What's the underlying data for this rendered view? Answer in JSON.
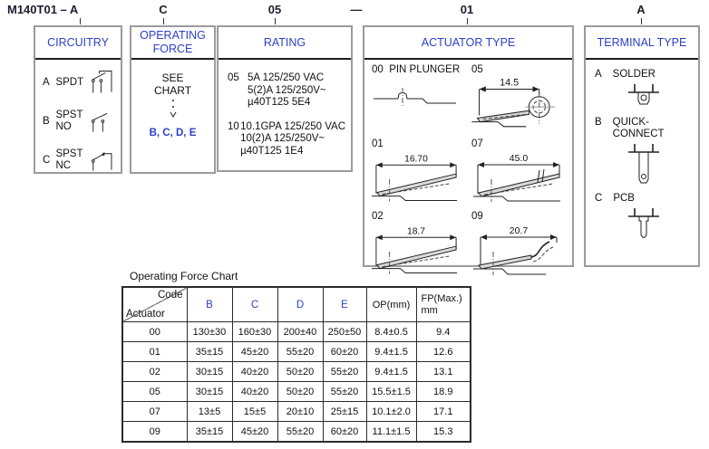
{
  "colors": {
    "accent_blue": "#2d3fc7",
    "box_border": "#9b9b9b",
    "text": "#1c1c1c"
  },
  "part_number": {
    "title": "M140T01 – A",
    "operating_force_code": "C",
    "rating_code": "05",
    "separator": "—",
    "actuator_code": "01",
    "terminal_code": "A"
  },
  "circuitry": {
    "title": "CIRCUITRY",
    "items": [
      {
        "code": "A",
        "line1": "SPDT",
        "line2": "",
        "icon": "spdt-circuit-icon"
      },
      {
        "code": "B",
        "line1": "SPST",
        "line2": "NO",
        "icon": "spst-no-circuit-icon"
      },
      {
        "code": "C",
        "line1": "SPST",
        "line2": "NC",
        "icon": "spst-nc-circuit-icon"
      }
    ]
  },
  "operating_force": {
    "title": "OPERATING FORCE",
    "see": "SEE",
    "chart": "CHART",
    "codes": "B, C, D, E"
  },
  "rating": {
    "title": "RATING",
    "items": [
      {
        "code": "05",
        "line1": "5A 125/250 VAC",
        "line2": "5(2)A 125/250V~",
        "line3": "µ40T125 5E4"
      },
      {
        "code": "10",
        "line1": "10.1GPA 125/250 VAC",
        "line2": "10(2)A 125/250V~",
        "line3": "µ40T125 1E4"
      }
    ]
  },
  "actuator": {
    "title": "ACTUATOR TYPE",
    "items": [
      {
        "code": "00",
        "label": "PIN PLUNGER",
        "dim": "",
        "icon": "pin-plunger-diagram"
      },
      {
        "code": "05",
        "label": "",
        "dim": "14.5",
        "icon": "roller-lever-diagram"
      },
      {
        "code": "01",
        "label": "",
        "dim": "16.70",
        "icon": "lever-diagram"
      },
      {
        "code": "07",
        "label": "",
        "dim": "45.0",
        "icon": "long-lever-diagram"
      },
      {
        "code": "02",
        "label": "",
        "dim": "18.7",
        "icon": "lever-diagram"
      },
      {
        "code": "09",
        "label": "",
        "dim": "20.7",
        "icon": "bent-lever-diagram"
      }
    ]
  },
  "terminal": {
    "title": "TERMINAL TYPE",
    "items": [
      {
        "code": "A",
        "label": "SOLDER",
        "icon": "solder-terminal-icon"
      },
      {
        "code": "B",
        "label": "QUICK-CONNECT",
        "icon": "quick-connect-terminal-icon"
      },
      {
        "code": "C",
        "label": "PCB",
        "icon": "pcb-terminal-icon"
      }
    ]
  },
  "force_chart": {
    "title": "Operating Force Chart",
    "corner_top": "Code",
    "corner_bottom": "Actuator",
    "columns": [
      "B",
      "C",
      "D",
      "E",
      "OP(mm)",
      "FP(Max.)"
    ],
    "fp_unit": "mm",
    "rows": [
      [
        "00",
        "130±30",
        "160±30",
        "200±40",
        "250±50",
        "8.4±0.5",
        "9.4"
      ],
      [
        "01",
        "35±15",
        "45±20",
        "55±20",
        "60±20",
        "9.4±1.5",
        "12.6"
      ],
      [
        "02",
        "30±15",
        "40±20",
        "50±20",
        "55±20",
        "9.4±1.5",
        "13.1"
      ],
      [
        "05",
        "30±15",
        "40±20",
        "50±20",
        "55±20",
        "15.5±1.5",
        "18.9"
      ],
      [
        "07",
        "13±5",
        "15±5",
        "20±10",
        "25±15",
        "10.1±2.0",
        "17.1"
      ],
      [
        "09",
        "35±15",
        "45±20",
        "55±20",
        "60±20",
        "11.1±1.5",
        "15.3"
      ]
    ]
  }
}
